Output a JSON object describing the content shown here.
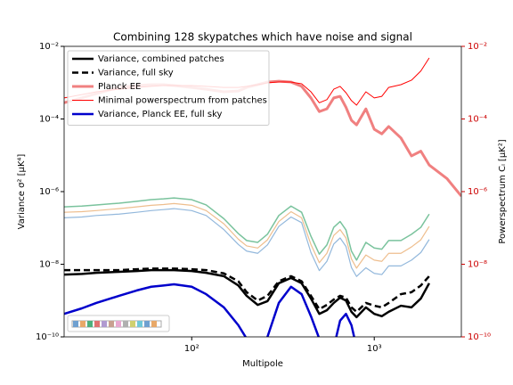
{
  "chart_data": {
    "type": "line",
    "title": "Combining 128 skypatches which have noise and signal",
    "xlabel": "Multipole",
    "ylabel": "Variance σ² [μK⁴]",
    "y2label": "Powerspectrum Cₗ [μK²]",
    "y2_color": "#cc0000",
    "xscale": "log",
    "yscale": "log",
    "y2scale": "log",
    "xlim": [
      20,
      3000
    ],
    "xticks": [
      {
        "value": 100,
        "label": "10²"
      },
      {
        "value": 1000,
        "label": "10³"
      }
    ],
    "ylim": [
      1e-10,
      0.01
    ],
    "yticks": [
      {
        "value": 1e-10,
        "label": "10⁻¹⁰"
      },
      {
        "value": 1e-08,
        "label": "10⁻⁸"
      },
      {
        "value": 1e-06,
        "label": "10⁻⁶"
      },
      {
        "value": 0.0001,
        "label": "10⁻⁴"
      },
      {
        "value": 0.01,
        "label": "10⁻²"
      }
    ],
    "y2lim": [
      1e-10,
      0.01
    ],
    "y2ticks": [
      {
        "value": 1e-10,
        "label": "10⁻¹⁰"
      },
      {
        "value": 1e-08,
        "label": "10⁻⁸"
      },
      {
        "value": 1e-06,
        "label": "10⁻⁶"
      },
      {
        "value": 0.0001,
        "label": "10⁻⁴"
      },
      {
        "value": 0.01,
        "label": "10⁻²"
      }
    ],
    "legend": "upper left",
    "x": [
      20,
      25,
      30,
      40,
      50,
      60,
      70,
      80,
      100,
      120,
      150,
      180,
      200,
      230,
      260,
      300,
      350,
      400,
      450,
      500,
      550,
      600,
      650,
      700,
      750,
      800,
      900,
      1000,
      1100,
      1200,
      1400,
      1600,
      1800,
      2000,
      2500,
      3000
    ],
    "series": [
      {
        "name": "Variance, combined patches",
        "color": "#000000",
        "linewidth": 2.5,
        "linestyle": "solid",
        "values": [
          5.2e-09,
          5.4e-09,
          5.8e-09,
          6.2e-09,
          6.5e-09,
          6.9e-09,
          6.9e-09,
          6.9e-09,
          6.5e-09,
          5.8e-09,
          4.7e-09,
          2.6e-09,
          1.35e-09,
          7.6e-10,
          9.6e-10,
          3e-09,
          4.2e-09,
          3e-09,
          1.14e-09,
          4.3e-10,
          5.4e-10,
          8.6e-10,
          1.2e-09,
          1e-09,
          4.9e-10,
          3.5e-10,
          6.5e-10,
          4.3e-10,
          3.7e-10,
          4.9e-10,
          7.2e-10,
          6.5e-10,
          1.14e-09,
          3e-09,
          null,
          null
        ]
      },
      {
        "name": "Variance, full sky",
        "color": "#000000",
        "linewidth": 2.5,
        "linestyle": "dashed",
        "values": [
          6.9e-09,
          6.9e-09,
          6.9e-09,
          6.9e-09,
          7.3e-09,
          7.6e-09,
          7.6e-09,
          7.6e-09,
          7.3e-09,
          6.9e-09,
          5.6e-09,
          3.4e-09,
          1.7e-09,
          1e-09,
          1.35e-09,
          3.4e-09,
          4.7e-09,
          3.4e-09,
          1.35e-09,
          5.8e-10,
          7.6e-10,
          1.07e-09,
          1.35e-09,
          1.2e-09,
          6.5e-10,
          4.9e-10,
          8.6e-10,
          7.2e-10,
          6.5e-10,
          8.6e-10,
          1.5e-09,
          1.7e-09,
          2.6e-09,
          4.7e-09,
          null,
          null
        ]
      },
      {
        "name": "Planck EE",
        "color": "#f08080",
        "linewidth": 3,
        "linestyle": "solid",
        "axis": "y2",
        "values": [
          0.00028,
          0.00038,
          0.0005,
          0.00074,
          0.00083,
          0.00088,
          0.00088,
          0.00083,
          0.00074,
          0.00066,
          0.00056,
          0.00059,
          0.00074,
          0.00088,
          0.00104,
          0.0011,
          0.00104,
          0.00079,
          0.00038,
          0.00016,
          0.00019,
          0.00038,
          0.00042,
          0.00021,
          9.2e-05,
          6.9e-05,
          0.00019,
          5.2e-05,
          3.9e-05,
          6.2e-05,
          3e-05,
          9.6e-06,
          1.3e-05,
          5.4e-06,
          2.3e-06,
          7.5e-07
        ]
      },
      {
        "name": "Minimal powerspectrum from patches",
        "color": "#ff0000",
        "linewidth": 1,
        "linestyle": "solid",
        "axis": "y2",
        "values": [
          0.00038,
          0.00047,
          0.00056,
          0.00066,
          0.00074,
          0.00079,
          0.00083,
          0.00083,
          0.00083,
          0.00079,
          0.00074,
          0.00074,
          0.00079,
          0.00088,
          0.00099,
          0.00104,
          0.00104,
          0.00093,
          0.00056,
          0.00028,
          0.00034,
          0.00066,
          0.00079,
          0.00053,
          0.00032,
          0.00024,
          0.00056,
          0.00038,
          0.00042,
          0.00074,
          0.00088,
          0.00117,
          0.0021,
          0.0048,
          null,
          null
        ]
      },
      {
        "name": "Variance, Planck EE, full sky",
        "color": "#0000cc",
        "linewidth": 2.5,
        "linestyle": "solid",
        "values": [
          4.3e-10,
          6.1e-10,
          8.6e-10,
          1.35e-09,
          1.9e-09,
          2.4e-09,
          2.6e-09,
          2.8e-09,
          2.4e-09,
          1.5e-09,
          6.5e-10,
          2.1e-10,
          8.9e-11,
          2e-11,
          1e-10,
          8.6e-10,
          2.4e-09,
          1.5e-09,
          3.7e-10,
          8.9e-11,
          3e-11,
          5.1e-11,
          2.8e-10,
          4.3e-10,
          2.1e-10,
          5.1e-11,
          null,
          null,
          null,
          null,
          null,
          null,
          null,
          null,
          null,
          null
        ]
      },
      {
        "color": "#4daf7c",
        "linewidth": 1.5,
        "linestyle": "solid",
        "values": [
          3.8e-07,
          4e-07,
          4.3e-07,
          4.8e-07,
          5.4e-07,
          6e-07,
          6.3e-07,
          6.7e-07,
          6e-07,
          4.3e-07,
          1.8e-07,
          7e-08,
          4.5e-08,
          4e-08,
          6.7e-08,
          2.2e-07,
          4e-07,
          2.7e-07,
          5.9e-08,
          1.9e-08,
          3.4e-08,
          1.04e-07,
          1.5e-07,
          8.8e-08,
          2.3e-08,
          1.3e-08,
          4e-08,
          2.8e-08,
          2.6e-08,
          4.5e-08,
          4.5e-08,
          6.7e-08,
          1.04e-07,
          2.4e-07,
          null,
          null
        ]
      },
      {
        "color": "#e8a868",
        "linewidth": 1.2,
        "linestyle": "solid",
        "values": [
          2.7e-07,
          2.8e-07,
          3e-07,
          3.4e-07,
          3.8e-07,
          4.2e-07,
          4.4e-07,
          4.7e-07,
          4.2e-07,
          3e-07,
          1.3e-07,
          4.9e-08,
          3.2e-08,
          2.8e-08,
          4.7e-08,
          1.5e-07,
          2.8e-07,
          1.9e-07,
          3.5e-08,
          1.1e-08,
          2e-08,
          6.2e-08,
          9e-08,
          5.3e-08,
          1.4e-08,
          7.8e-09,
          1.8e-08,
          1.3e-08,
          1.2e-08,
          2e-08,
          2e-08,
          3e-08,
          4.7e-08,
          1.1e-07,
          null,
          null
        ]
      },
      {
        "color": "#6fa0d0",
        "linewidth": 1.2,
        "linestyle": "solid",
        "values": [
          1.9e-07,
          2e-07,
          2.2e-07,
          2.4e-07,
          2.7e-07,
          3e-07,
          3.2e-07,
          3.4e-07,
          3e-07,
          2.2e-07,
          9e-08,
          3.5e-08,
          2.3e-08,
          2e-08,
          3.4e-08,
          1.1e-07,
          2e-07,
          1.4e-07,
          2.1e-08,
          6.7e-09,
          1.2e-08,
          3.6e-08,
          5.3e-08,
          3.1e-08,
          8.1e-09,
          4.6e-09,
          8e-09,
          5.6e-09,
          5.2e-09,
          9e-09,
          9e-09,
          1.3e-08,
          2.1e-08,
          4.8e-08,
          null,
          null
        ]
      }
    ]
  }
}
